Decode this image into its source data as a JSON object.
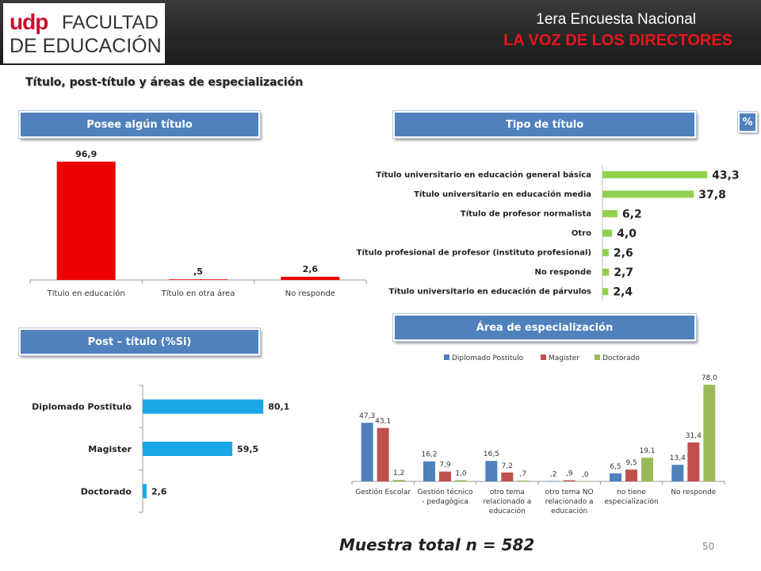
{
  "header": {
    "logo_line1_a": "udp",
    "logo_line1_b": "FACULTAD",
    "logo_line2": "DE EDUCACIÓN",
    "title_line1": "1era Encuesta Nacional",
    "title_line2": "LA VOZ DE LOS DIRECTORES"
  },
  "subtitle": "Título, post-título y áreas de especialización",
  "badge": "%",
  "sections": {
    "posee": "Posee algún título",
    "tipo": "Tipo de título",
    "post": "Post – título (%Si)",
    "area": "Área de especialización"
  },
  "footer": {
    "sample": "Muestra total n = 582",
    "page": "50"
  },
  "colors": {
    "red": "#ee0000",
    "green": "#92d050",
    "cyan": "#18a8e8",
    "blue": "#4f81bd",
    "darkred": "#c0504d",
    "lightgreen": "#9bbb59"
  },
  "chart_data": [
    {
      "type": "bar",
      "categories": [
        "Título en educación",
        "Título en otra área",
        "No responde"
      ],
      "values": [
        96.9,
        0.5,
        2.6
      ],
      "labels": [
        "96,9",
        ",5",
        "2,6"
      ],
      "ylim": [
        0,
        100
      ]
    },
    {
      "type": "bar",
      "orientation": "horizontal",
      "categories": [
        "Título universitario en educación general básica",
        "Título universitario en educación media",
        "Título de profesor normalista",
        "Otro",
        "Título profesional de profesor (instituto profesional)",
        "No responde",
        "Título universitario en educación de párvulos"
      ],
      "values": [
        43.3,
        37.8,
        6.2,
        4.0,
        2.6,
        2.7,
        2.4
      ],
      "labels": [
        "43,3",
        "37,8",
        "6,2",
        "4,0",
        "2,6",
        "2,7",
        "2,4"
      ],
      "xlim": [
        0,
        100
      ]
    },
    {
      "type": "bar",
      "orientation": "horizontal",
      "categories": [
        "Diplomado Postitulo",
        "Magister",
        "Doctorado"
      ],
      "values": [
        80.1,
        59.5,
        2.6
      ],
      "labels": [
        "80,1",
        "59,5",
        "2,6"
      ],
      "xlim": [
        0,
        100
      ]
    },
    {
      "type": "bar",
      "categories": [
        [
          "Gestión Escolar"
        ],
        [
          "Gestión técnico",
          "- pedagógica"
        ],
        [
          "otro tema",
          "relacionado a",
          "educación"
        ],
        [
          "otro tema NO",
          "relacionado a",
          "educación"
        ],
        [
          "no tiene",
          "especialización"
        ],
        [
          "No responde"
        ]
      ],
      "series": [
        {
          "name": "Diplomado Postitulo",
          "values": [
            47.3,
            16.2,
            16.5,
            0.2,
            6.5,
            13.4
          ],
          "labels": [
            "47,3",
            "16,2",
            "16,5",
            ",2",
            "6,5",
            "13,4"
          ]
        },
        {
          "name": "Magister",
          "values": [
            43.1,
            7.9,
            7.2,
            0.9,
            9.5,
            31.4
          ],
          "labels": [
            "43,1",
            "7,9",
            "7,2",
            ",9",
            "9,5",
            "31,4"
          ]
        },
        {
          "name": "Doctorado",
          "values": [
            1.2,
            1.0,
            0.7,
            0.0,
            19.1,
            78.0
          ],
          "labels": [
            "1,2",
            "1,0",
            ",7",
            ",0",
            "19,1",
            "78,0"
          ]
        }
      ],
      "legend": "top",
      "ylim": [
        0,
        80
      ]
    }
  ]
}
